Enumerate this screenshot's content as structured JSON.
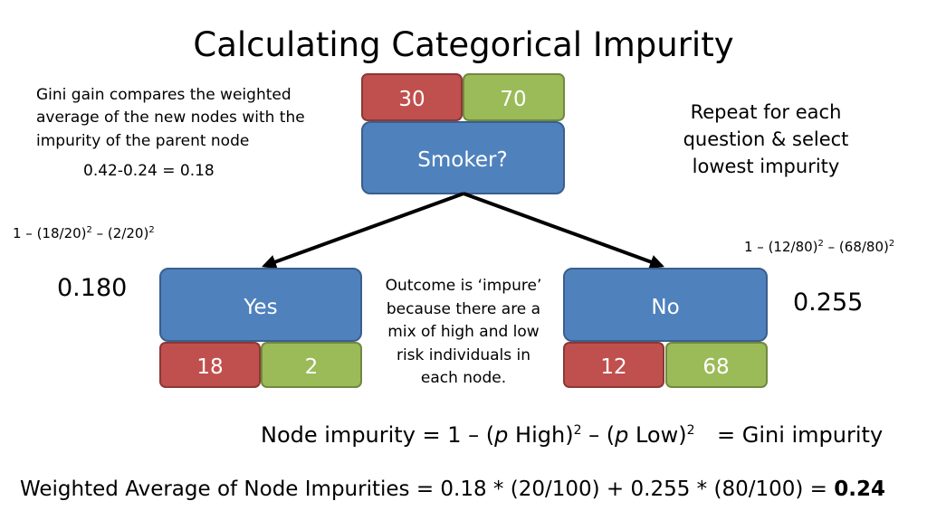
{
  "title": "Calculating Categorical Impurity",
  "gain_note": {
    "lines": [
      "Gini gain compares the weighted",
      "average of the new nodes with the",
      "impurity of the parent node"
    ],
    "calc": "0.42-0.24 = 0.18"
  },
  "repeat_note": {
    "lines": [
      "Repeat for each",
      "question & select",
      "lowest impurity"
    ]
  },
  "root": {
    "label": "Smoker?",
    "high": "30",
    "low": "70"
  },
  "left": {
    "label": "Yes",
    "high": "18",
    "low": "2",
    "formula": [
      "1 – (18/20)",
      "2",
      " – (2/20)",
      "2"
    ],
    "impurity": "0.180"
  },
  "right": {
    "label": "No",
    "high": "12",
    "low": "68",
    "formula": [
      "1 – (12/80)",
      "2",
      " – (68/80)",
      "2"
    ],
    "impurity": "0.255"
  },
  "outcome_note": {
    "lines": [
      "Outcome is ‘impure’",
      "because there are a",
      "mix of high and low",
      "risk individuals in",
      "each node."
    ]
  },
  "node_impurity": {
    "parts": [
      "Node impurity = 1 – (",
      "p",
      " High)",
      "2",
      " – (",
      "p",
      " Low)",
      "2"
    ],
    "equals": "= Gini impurity"
  },
  "weighted": {
    "text": "Weighted Average of Node Impurities = 0.18 * (20/100) + 0.255 * (80/100) = ",
    "result": "0.24"
  }
}
